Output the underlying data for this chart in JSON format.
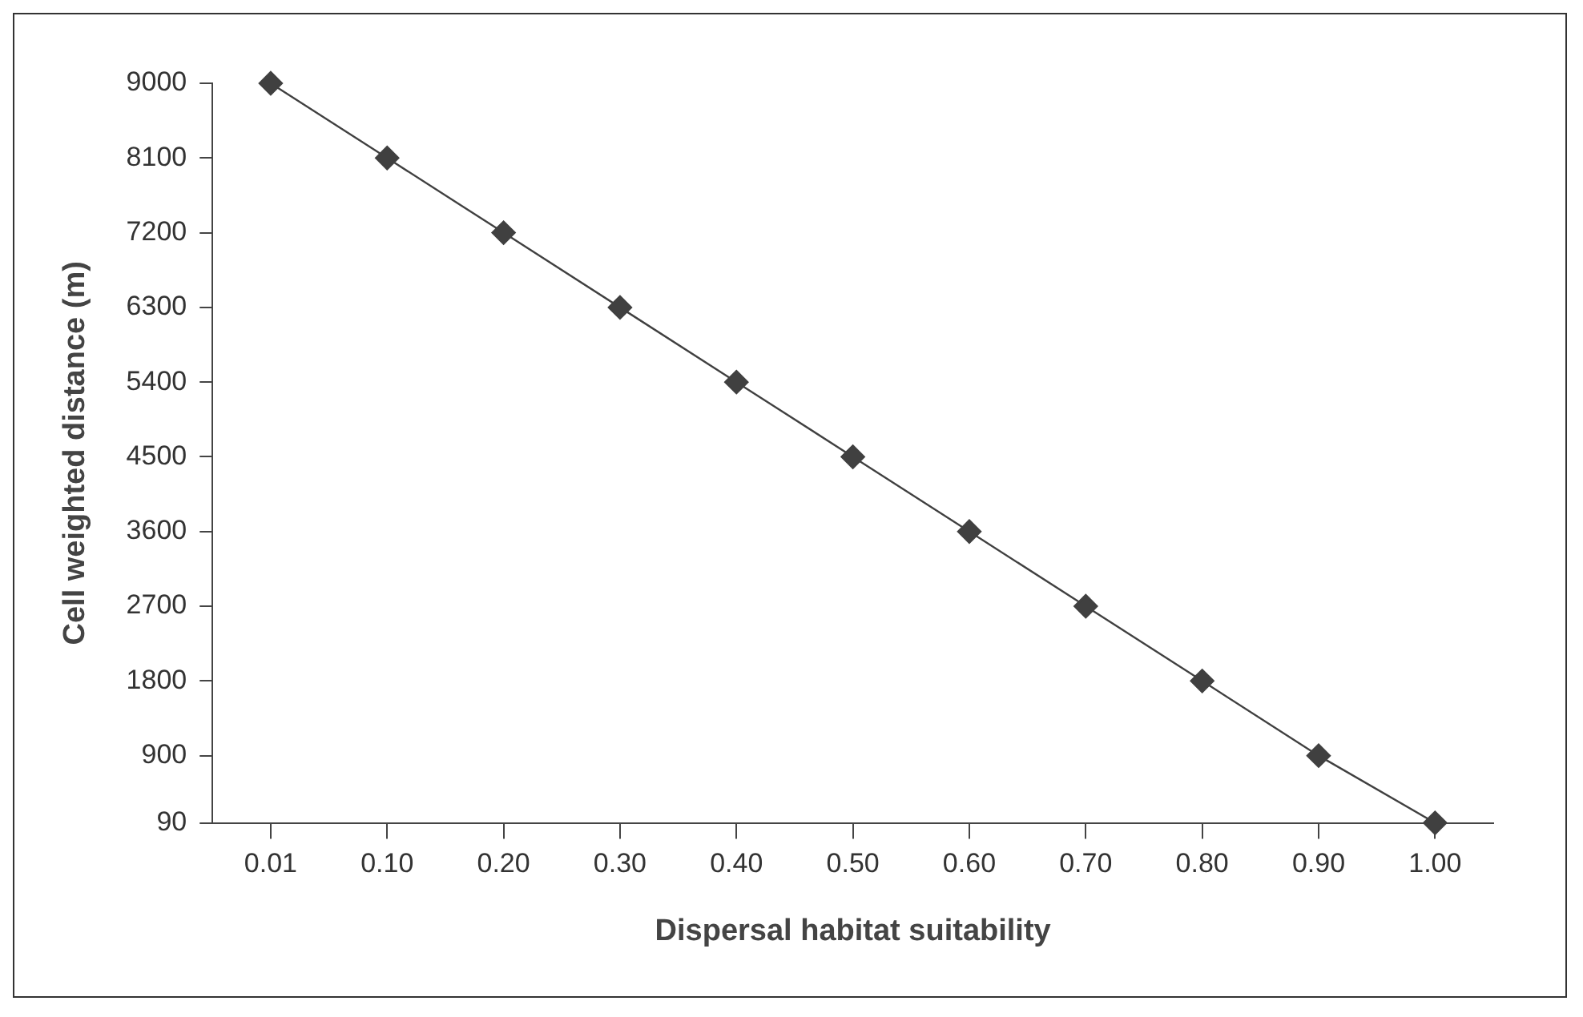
{
  "chart_data": {
    "type": "line",
    "xlabel": "Dispersal habitat suitability",
    "ylabel": "Cell weighted distance (m)",
    "categories": [
      "0.01",
      "0.10",
      "0.20",
      "0.30",
      "0.40",
      "0.50",
      "0.60",
      "0.70",
      "0.80",
      "0.90",
      "1.00"
    ],
    "series": [
      {
        "color": "#404040",
        "values": [
          9000,
          8100,
          7200,
          6300,
          5400,
          4500,
          3600,
          2700,
          1800,
          900,
          90
        ]
      }
    ],
    "ylim": [
      90,
      9000
    ],
    "yticks": [
      90,
      900,
      1800,
      2700,
      3600,
      4500,
      5400,
      6300,
      7200,
      8100,
      9000
    ],
    "grid": false,
    "legend": false,
    "marker": "diamond",
    "line_style": "solid"
  }
}
